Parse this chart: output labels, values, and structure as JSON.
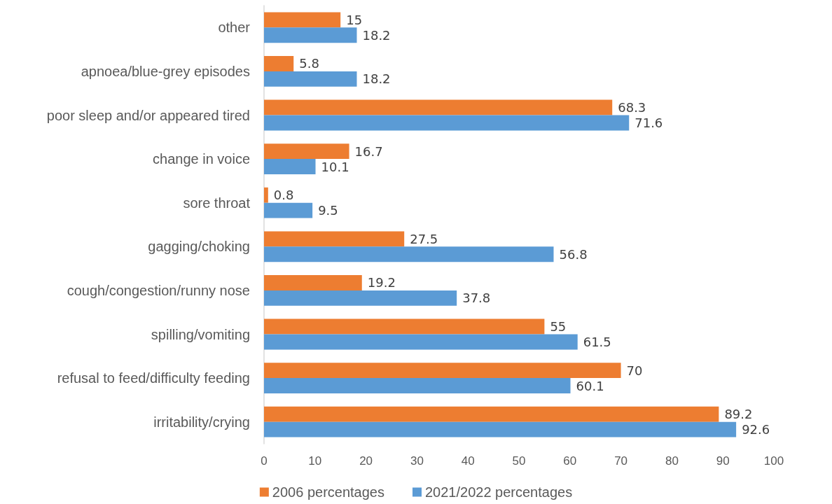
{
  "chart_data": {
    "type": "bar",
    "orientation": "horizontal",
    "categories": [
      "other",
      "apnoea/blue-grey episodes",
      "poor sleep and/or appeared tired",
      "change in voice",
      "sore throat",
      "gagging/choking",
      "cough/congestion/runny nose",
      "spilling/vomiting",
      "refusal to feed/difficulty feeding",
      "irritability/crying"
    ],
    "series": [
      {
        "name": "2006 percentages",
        "color": "#ed7d31",
        "values": [
          15,
          5.8,
          68.3,
          16.7,
          0.8,
          27.5,
          19.2,
          55,
          70,
          89.2
        ]
      },
      {
        "name": "2021/2022 percentages",
        "color": "#5b9bd5",
        "values": [
          18.2,
          18.2,
          71.6,
          10.1,
          9.5,
          56.8,
          37.8,
          61.5,
          60.1,
          92.6
        ]
      }
    ],
    "xlim": [
      0,
      100
    ],
    "xticks": [
      0,
      10,
      20,
      30,
      40,
      50,
      60,
      70,
      80,
      90,
      100
    ],
    "data_labels": true,
    "legend": "bottom",
    "grid": false
  }
}
